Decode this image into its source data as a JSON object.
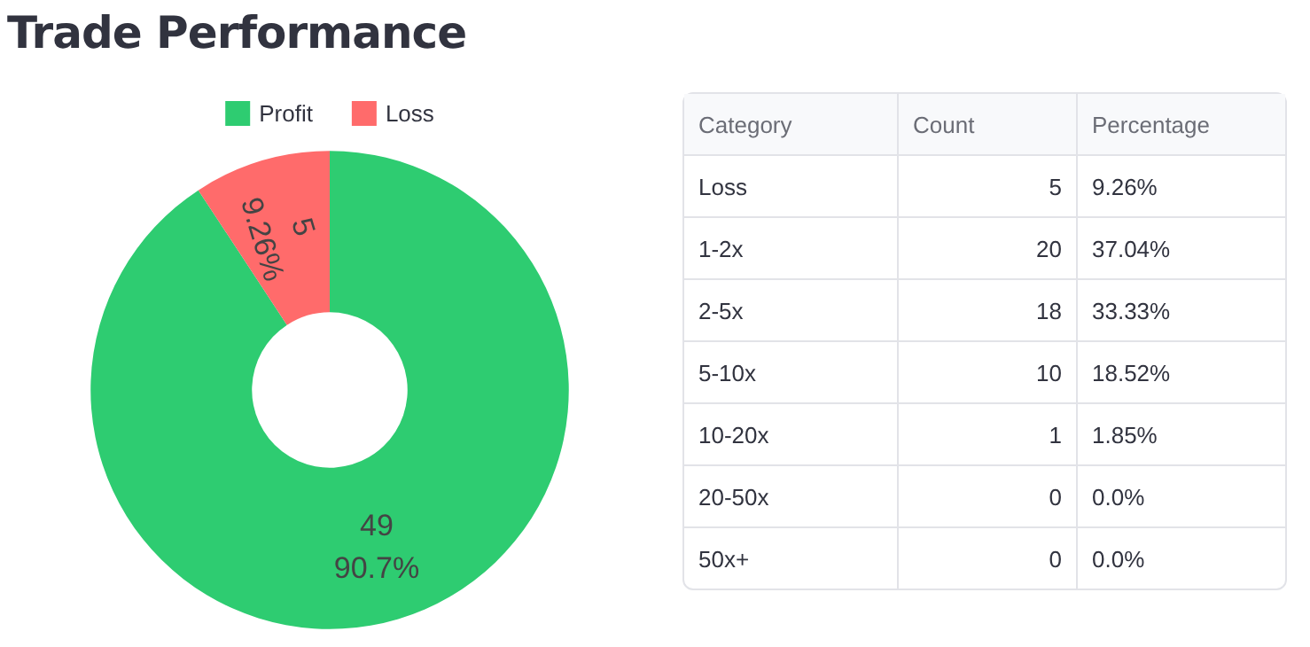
{
  "chart_data": [
    {
      "type": "donut",
      "title": "Trade Performance",
      "categories": [
        "Profit",
        "Loss"
      ],
      "values": [
        49,
        5
      ],
      "colors": [
        "#2ecc71",
        "#ff6b6b"
      ],
      "value_labels": [
        "49\n90.7%",
        "5\n9.26%"
      ],
      "legend": "top"
    },
    {
      "type": "other",
      "xlabel": "Category",
      "categories": [
        "Loss",
        "1-2x",
        "2-5x",
        "5-10x",
        "10-20x",
        "20-50x",
        "50x+"
      ],
      "data_labels": true,
      "series": [
        {
          "name": "Count",
          "values": [
            5,
            20,
            18,
            10,
            1,
            0,
            0
          ]
        },
        {
          "name": "Percentage",
          "values": [
            9.26,
            37.04,
            33.33,
            18.52,
            1.85,
            0.0,
            0.0
          ],
          "value_labels": [
            "9.26%",
            "37.04%",
            "33.33%",
            "18.52%",
            "1.85%",
            "0.0%",
            "0.0%"
          ]
        }
      ]
    }
  ]
}
